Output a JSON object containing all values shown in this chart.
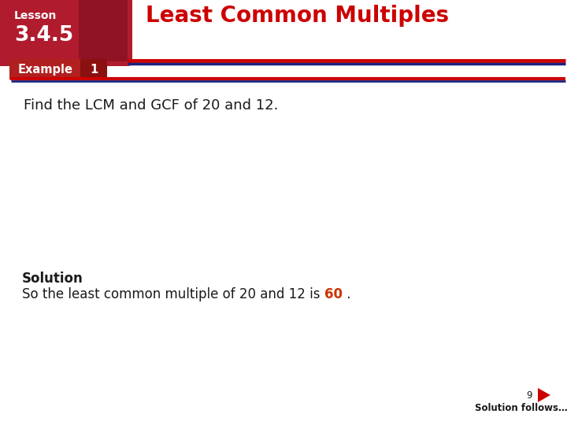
{
  "bg_color": "#ffffff",
  "lesson_label": "Lesson",
  "lesson_number": "3.4.5",
  "title": "Least Common Multiples",
  "title_color": "#cc0000",
  "divider_red": "#cc0000",
  "divider_navy": "#1a237e",
  "example_label": "Example",
  "example_number": "1",
  "example_bg": "#b02020",
  "example_num_bg": "#8b1010",
  "find_text": "Find the LCM and GCF of 20 and 12.",
  "solution_label": "Solution",
  "solution_text_part1": "So the least common multiple of 20 and 12 is ",
  "solution_highlight": "60",
  "solution_text_part2": " .",
  "solution_highlight_color": "#cc3300",
  "page_number": "9",
  "footer_text": "Solution follows…",
  "text_color": "#1a1a1a",
  "arrow_color": "#cc0000",
  "lesson_box_color": "#b01c2e",
  "lesson_box_dark": "#7a0e1e"
}
